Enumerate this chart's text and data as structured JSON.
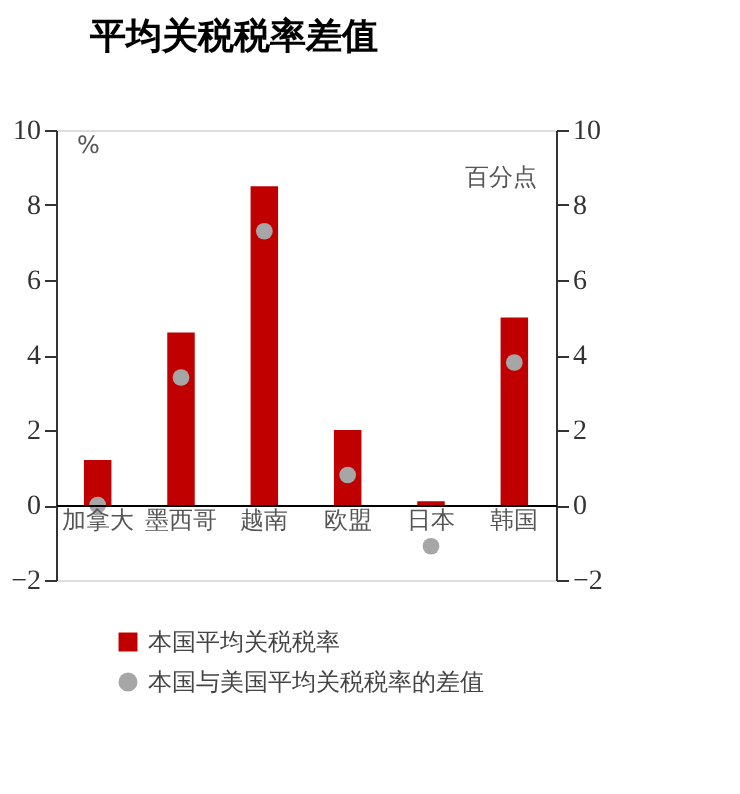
{
  "chart_data": {
    "type": "bar",
    "title": "平均关税税率差值",
    "ylabel": "%",
    "y2label": "百分点",
    "categories": [
      "加拿大",
      "墨西哥",
      "越南",
      "欧盟",
      "日本",
      "韩国"
    ],
    "series": [
      {
        "name": "本国平均关税税率",
        "color": "#c00000",
        "values": [
          1.2,
          4.6,
          8.5,
          2.0,
          0.1,
          5.0
        ]
      },
      {
        "name": "本国与美国平均关税税率的差值",
        "type": "scatter",
        "axis": "y2",
        "color": "#a6a6a6",
        "marker": "circle",
        "values": [
          0.0,
          3.4,
          7.3,
          0.8,
          -1.1,
          3.8
        ]
      }
    ],
    "ylim": [
      -2,
      10
    ],
    "yticks": [
      -2,
      0,
      2,
      4,
      6,
      8,
      10
    ],
    "y2lim": [
      -2,
      10
    ],
    "y2ticks": [
      -2,
      0,
      2,
      4,
      6,
      8,
      10
    ],
    "grid": false,
    "legend": "bottom"
  }
}
